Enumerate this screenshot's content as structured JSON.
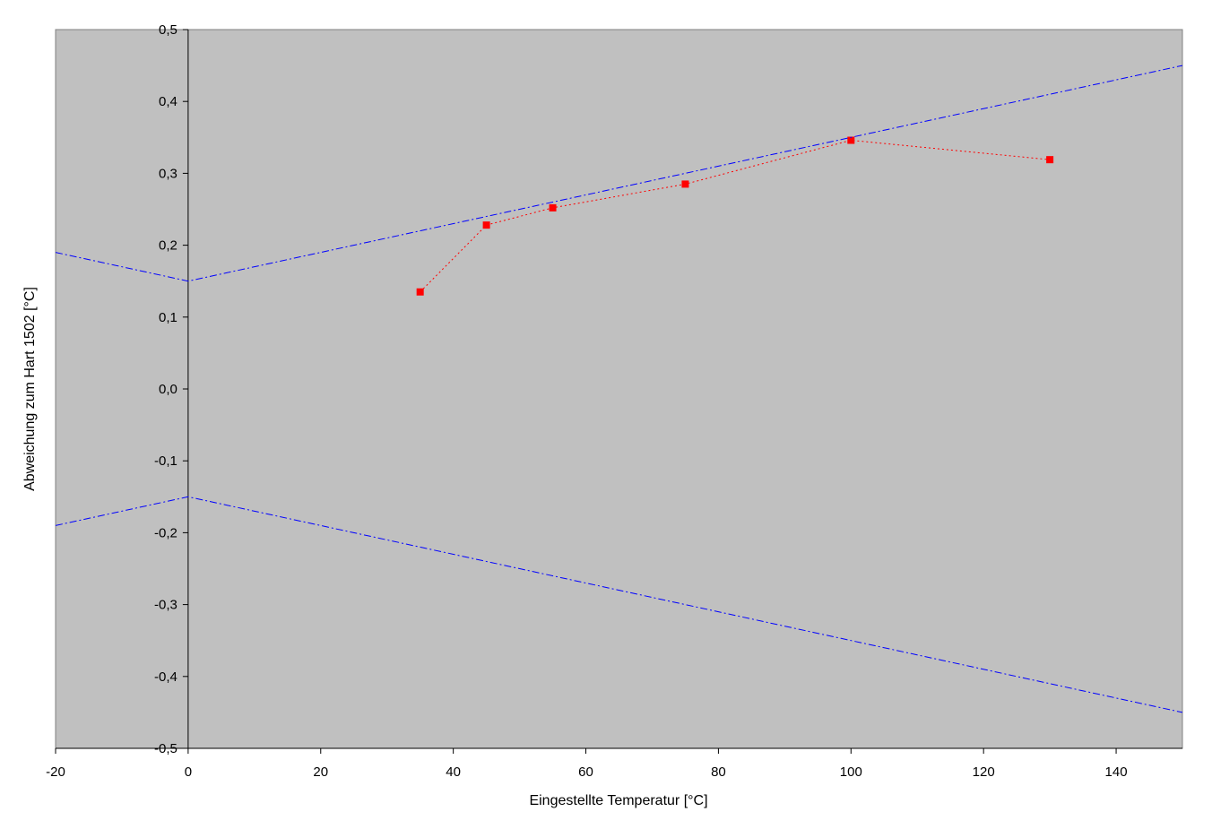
{
  "chart_data": {
    "type": "line",
    "title": "",
    "xlabel": "Eingestellte Temperatur [°C]",
    "ylabel": "Abweichung zum Hart 1502 [°C]",
    "xlim": [
      -20,
      150
    ],
    "ylim": [
      -0.5,
      0.5
    ],
    "x_ticks": [
      -20,
      0,
      20,
      40,
      60,
      80,
      100,
      120,
      140
    ],
    "x_tick_labels": [
      "-20",
      "0",
      "20",
      "40",
      "60",
      "80",
      "100",
      "120",
      "140"
    ],
    "y_ticks": [
      0.5,
      0.4,
      0.3,
      0.2,
      0.1,
      0.0,
      -0.1,
      -0.2,
      -0.3,
      -0.4,
      -0.5
    ],
    "y_tick_labels": [
      "0,5",
      "0,4",
      "0,3",
      "0,2",
      "0,1",
      "0,0",
      "-0,1",
      "-0,2",
      "-0,3",
      "-0,4",
      "-0,5"
    ],
    "grid": false,
    "legend": "none",
    "background_color": "#c0c0c0",
    "series": [
      {
        "style": "dotted-with-square-markers",
        "color": "#ff0000",
        "x": [
          35,
          45,
          55,
          75,
          100,
          130
        ],
        "y": [
          0.135,
          0.228,
          0.252,
          0.285,
          0.346,
          0.319
        ]
      },
      {
        "style": "dash-dot",
        "color": "#0000ff",
        "x": [
          -20,
          0,
          150
        ],
        "y": [
          0.19,
          0.15,
          0.45
        ]
      },
      {
        "style": "dash-dot",
        "color": "#0000ff",
        "x": [
          -20,
          0,
          150
        ],
        "y": [
          -0.19,
          -0.15,
          -0.45
        ]
      }
    ]
  }
}
